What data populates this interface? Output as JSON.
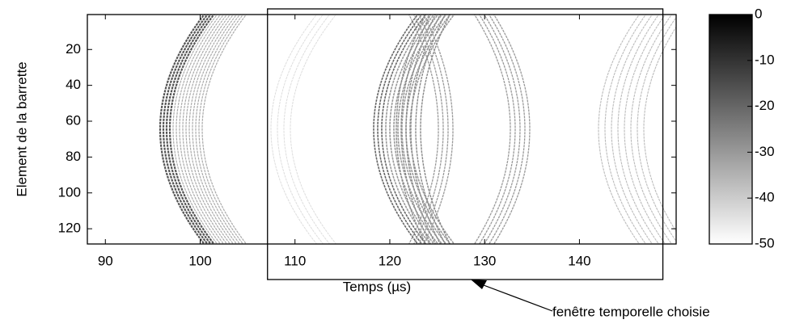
{
  "chart_data": {
    "type": "heatmap",
    "xlabel": "Temps (µs)",
    "ylabel": "Element de la barrette",
    "xlim": [
      88.1,
      150.2
    ],
    "xticks": [
      90,
      100,
      110,
      120,
      130,
      140
    ],
    "ylim": [
      0.5,
      128.5
    ],
    "yreverse": true,
    "yticks": [
      20,
      40,
      60,
      80,
      100,
      120
    ],
    "clim": [
      -50,
      0
    ],
    "cticks": [
      0,
      -10,
      -20,
      -30,
      -40,
      -50
    ],
    "colormap": "gray",
    "window": {
      "x": [
        107.1,
        148.8
      ],
      "label": "fenêtre temporelle choisie"
    }
  }
}
